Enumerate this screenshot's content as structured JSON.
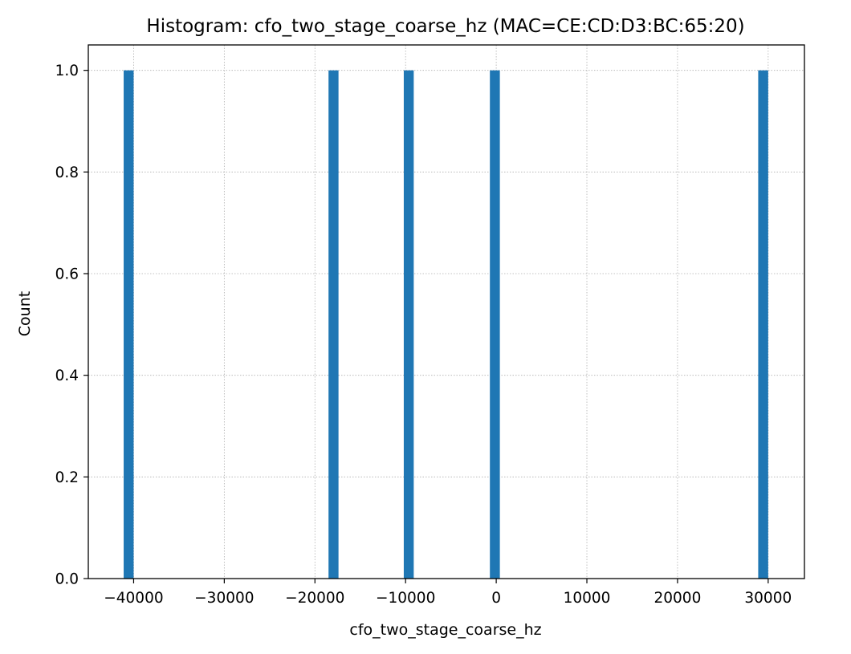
{
  "chart_data": {
    "type": "bar",
    "title": "Histogram: cfo_two_stage_coarse_hz (MAC=CE:CD:D3:BC:65:20)",
    "xlabel": "cfo_two_stage_coarse_hz",
    "ylabel": "Count",
    "xlim": [
      -45000,
      34000
    ],
    "ylim": [
      0,
      1.05
    ],
    "xticks": [
      -40000,
      -30000,
      -20000,
      -10000,
      0,
      10000,
      20000,
      30000
    ],
    "xtick_labels": [
      "−40000",
      "−30000",
      "−20000",
      "−10000",
      "0",
      "10000",
      "20000",
      "30000"
    ],
    "yticks": [
      0.0,
      0.2,
      0.4,
      0.6,
      0.8,
      1.0
    ],
    "ytick_labels": [
      "0.0",
      "0.2",
      "0.4",
      "0.6",
      "0.8",
      "1.0"
    ],
    "bars": [
      {
        "x0": -41100,
        "x1": -40000,
        "count": 1
      },
      {
        "x0": -18500,
        "x1": -17400,
        "count": 1
      },
      {
        "x0": -10200,
        "x1": -9100,
        "count": 1
      },
      {
        "x0": -700,
        "x1": 400,
        "count": 1
      },
      {
        "x0": 28900,
        "x1": 30000,
        "count": 1
      }
    ],
    "bar_color": "#1f77b4",
    "grid": true,
    "grid_style": "dotted"
  }
}
